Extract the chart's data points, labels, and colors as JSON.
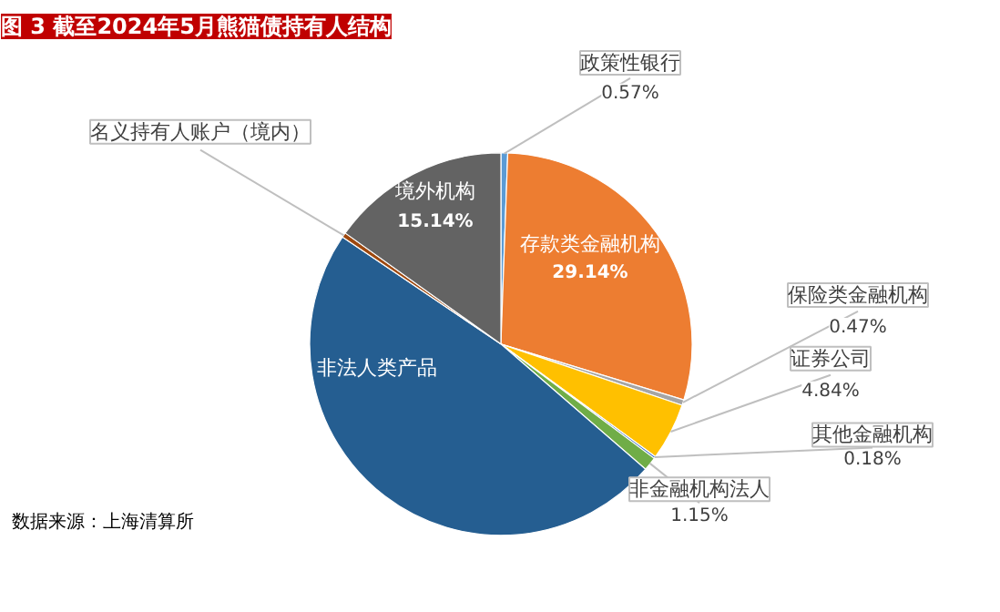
{
  "chart_data": {
    "type": "pie",
    "title": "图 3 截至2024年5月熊猫债持有人结构",
    "categories": [
      "政策性银行",
      "存款类金融机构",
      "保险类金融机构",
      "证券公司",
      "其他金融机构",
      "非金融机构法人",
      "非法人类产品",
      "名义持有人账户（境内）",
      "境外机构"
    ],
    "values": [
      0.57,
      29.14,
      0.47,
      4.84,
      0.18,
      1.15,
      48.11,
      0.4,
      15.14
    ],
    "colors": [
      "#5b9bd5",
      "#ed7d31",
      "#a5a5a5",
      "#ffc000",
      "#4472c4",
      "#70ad47",
      "#255e91",
      "#9e480e",
      "#636363"
    ],
    "value_labels": [
      "0.57%",
      "29.14%",
      "0.47%",
      "4.84%",
      "0.18%",
      "1.15%",
      null,
      null,
      "15.14%"
    ],
    "annotations": [
      "数据来源：上海清算所"
    ]
  }
}
